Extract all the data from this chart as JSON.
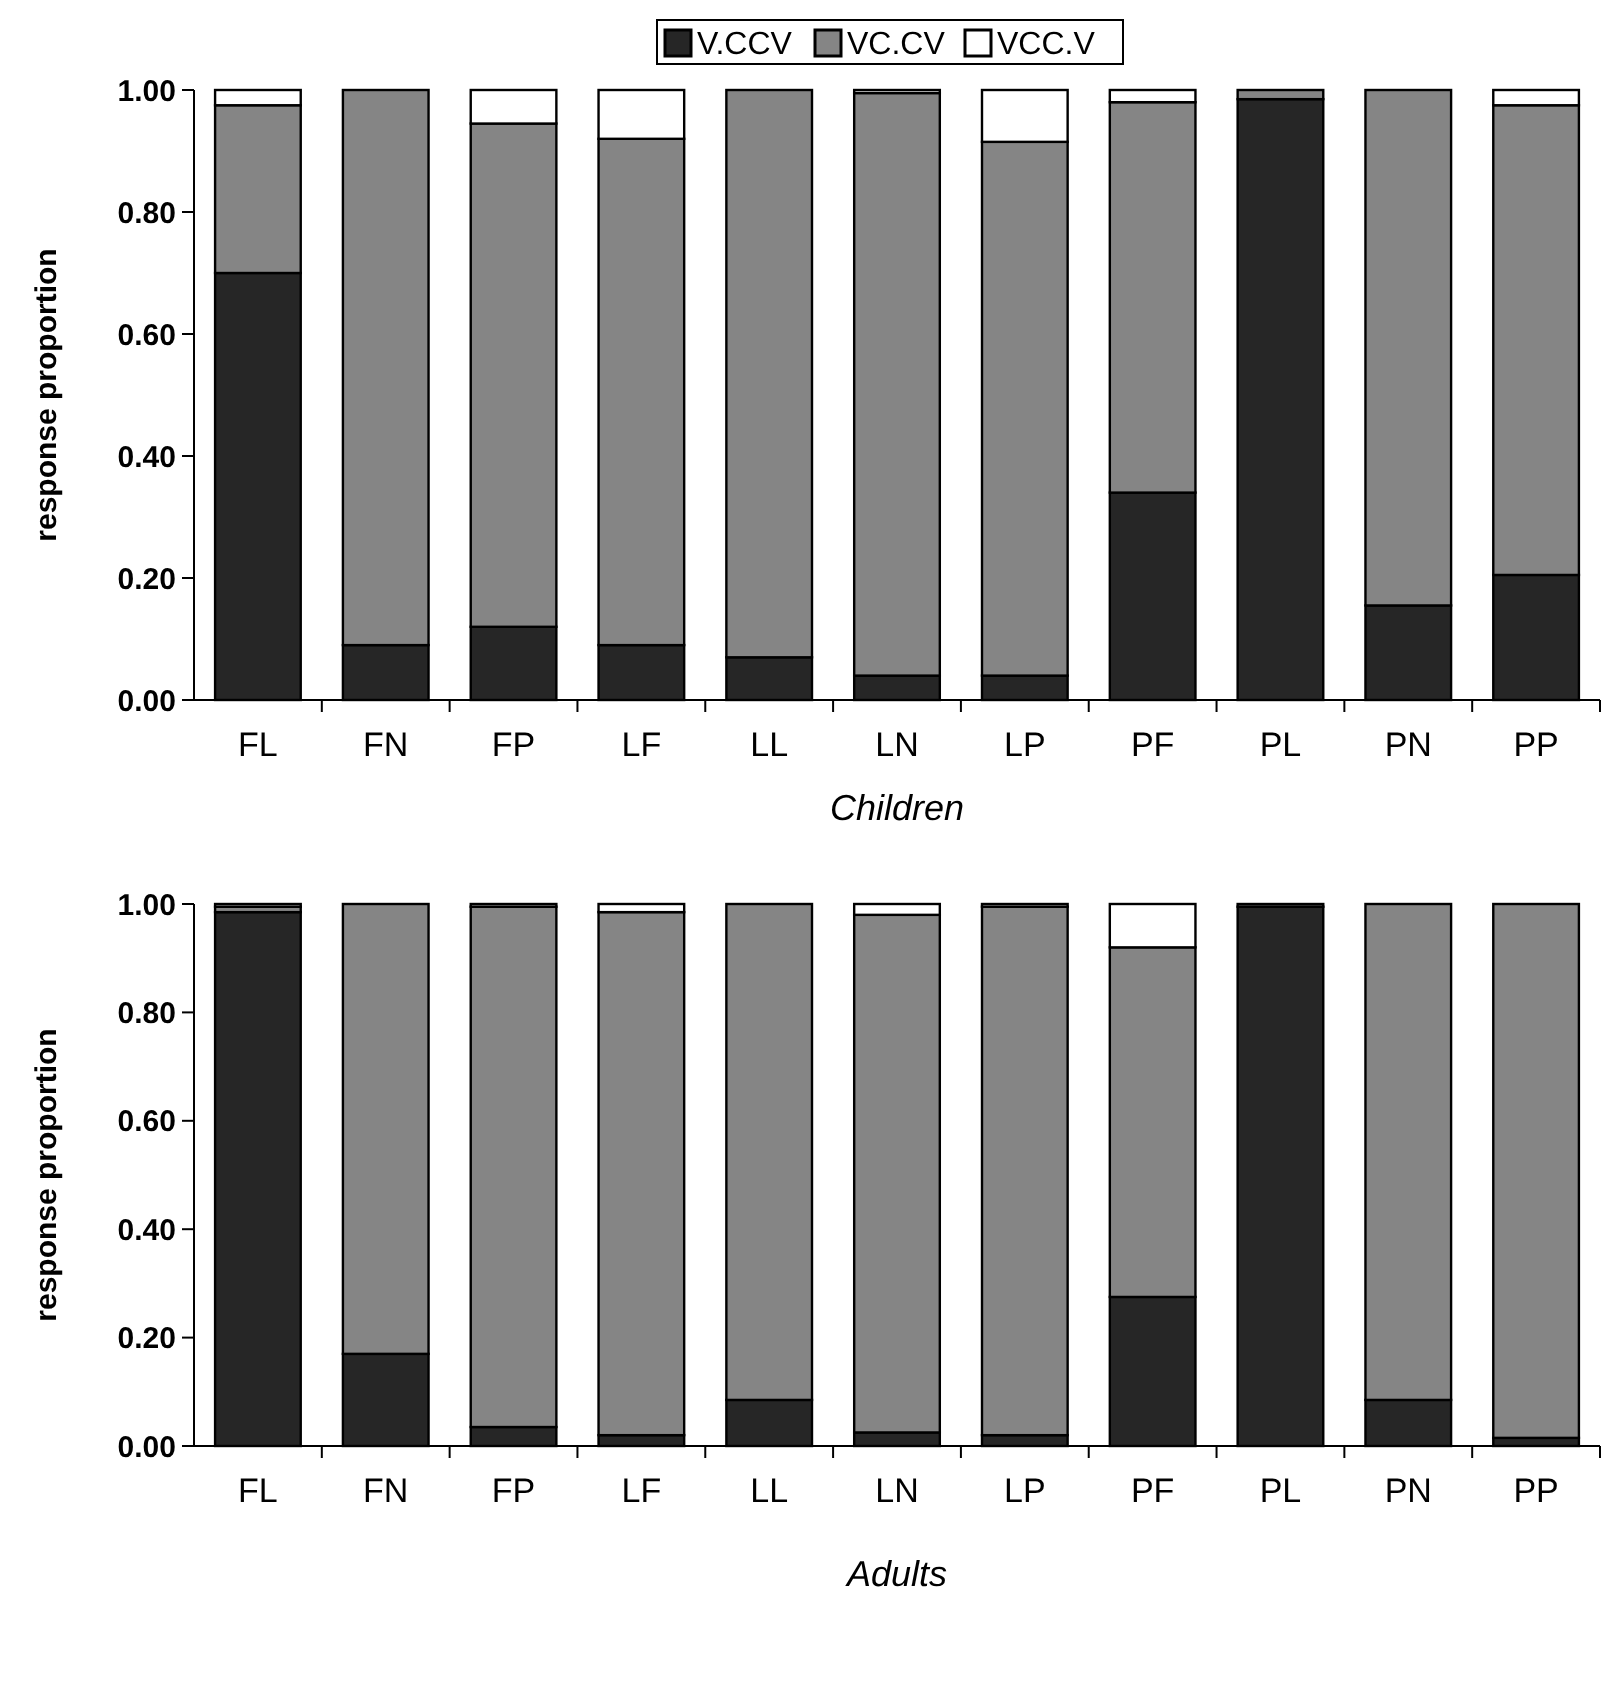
{
  "chart_data": [
    {
      "type": "bar",
      "stacked": true,
      "xlabel": "Children",
      "ylabel": "response proportion",
      "legend": "top",
      "categories": [
        "FL",
        "FN",
        "FP",
        "LF",
        "LL",
        "LN",
        "LP",
        "PF",
        "PL",
        "PN",
        "PP"
      ],
      "ylim": [
        0,
        1
      ],
      "yticks": [
        {
          "value": 0,
          "label": "0.00"
        },
        {
          "value": 0.2,
          "label": "0.20"
        },
        {
          "value": 0.4,
          "label": "0.40"
        },
        {
          "value": 0.6,
          "label": "0.60"
        },
        {
          "value": 0.8,
          "label": "0.80"
        },
        {
          "value": 1,
          "label": "1.00"
        }
      ],
      "grid": false,
      "series": [
        {
          "name": "V.CCV",
          "color": "#262626",
          "values": [
            0.7,
            0.09,
            0.12,
            0.09,
            0.07,
            0.04,
            0.04,
            0.34,
            0.985,
            0.155,
            0.205
          ]
        },
        {
          "name": "VC.CV",
          "color": "#858585",
          "values": [
            0.275,
            0.91,
            0.825,
            0.83,
            0.93,
            0.955,
            0.875,
            0.64,
            0.015,
            0.845,
            0.77
          ]
        },
        {
          "name": "VCC.V",
          "color": "#ffffff",
          "values": [
            0.025,
            0,
            0.055,
            0.08,
            0,
            0.005,
            0.085,
            0.02,
            0,
            0,
            0.025
          ]
        }
      ]
    },
    {
      "type": "bar",
      "stacked": true,
      "xlabel": "Adults",
      "ylabel": "response proportion",
      "legend": false,
      "categories": [
        "FL",
        "FN",
        "FP",
        "LF",
        "LL",
        "LN",
        "LP",
        "PF",
        "PL",
        "PN",
        "PP"
      ],
      "ylim": [
        0,
        1
      ],
      "yticks": [
        {
          "value": 0,
          "label": "0.00"
        },
        {
          "value": 0.2,
          "label": "0.20"
        },
        {
          "value": 0.4,
          "label": "0.40"
        },
        {
          "value": 0.6,
          "label": "0.60"
        },
        {
          "value": 0.8,
          "label": "0.80"
        },
        {
          "value": 1,
          "label": "1.00"
        }
      ],
      "grid": false,
      "series": [
        {
          "color": "#262626",
          "values": [
            0.985,
            0.17,
            0.035,
            0.02,
            0.085,
            0.025,
            0.02,
            0.275,
            0.995,
            0.085,
            0.015
          ]
        },
        {
          "color": "#858585",
          "values": [
            0.01,
            0.83,
            0.96,
            0.965,
            0.915,
            0.955,
            0.975,
            0.645,
            0.005,
            0.915,
            0.985
          ]
        },
        {
          "color": "#ffffff",
          "values": [
            0.005,
            0,
            0.005,
            0.015,
            0,
            0.02,
            0.005,
            0.08,
            0,
            0,
            0
          ]
        }
      ]
    }
  ]
}
